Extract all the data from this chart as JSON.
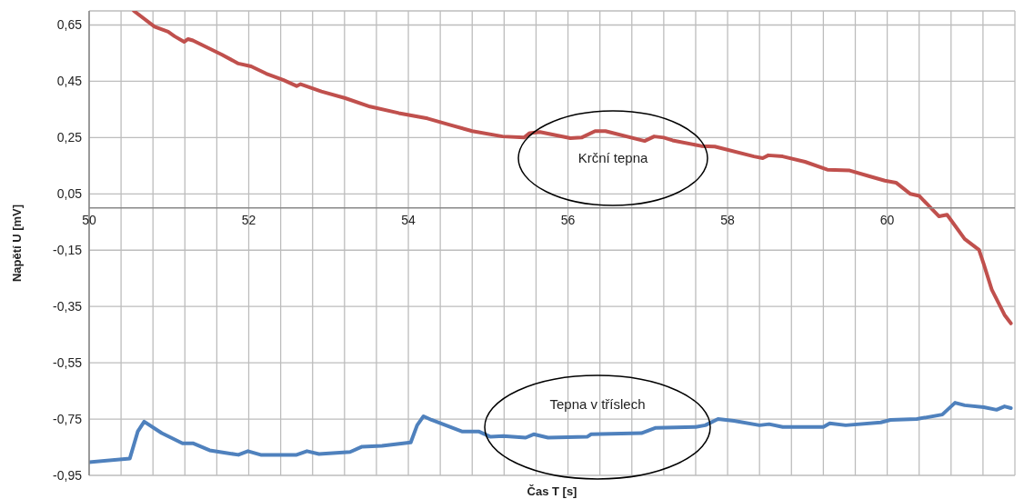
{
  "chart_data": {
    "type": "line",
    "xlabel": "Čas T [s]",
    "ylabel": "Napětí U [mV]",
    "xlim": [
      50,
      61.6
    ],
    "ylim": [
      -0.95,
      0.7
    ],
    "xticks": [
      50,
      {
        "value": 50.4,
        "label": null
      },
      {
        "value": 50.8,
        "label": null
      },
      {
        "value": 51.2,
        "label": null
      },
      {
        "value": 51.6,
        "label": null
      },
      52,
      {
        "value": 52.4,
        "label": null
      },
      {
        "value": 52.8,
        "label": null
      },
      {
        "value": 53.2,
        "label": null
      },
      {
        "value": 53.6,
        "label": null
      },
      54,
      {
        "value": 54.4,
        "label": null
      },
      {
        "value": 54.8,
        "label": null
      },
      {
        "value": 55.2,
        "label": null
      },
      {
        "value": 55.6,
        "label": null
      },
      56,
      {
        "value": 56.4,
        "label": null
      },
      {
        "value": 56.8,
        "label": null
      },
      {
        "value": 57.2,
        "label": null
      },
      {
        "value": 57.6,
        "label": null
      },
      58,
      {
        "value": 58.4,
        "label": null
      },
      {
        "value": 58.8,
        "label": null
      },
      {
        "value": 59.2,
        "label": null
      },
      {
        "value": 59.6,
        "label": null
      },
      60,
      {
        "value": 60.4,
        "label": null
      },
      {
        "value": 60.8,
        "label": null
      },
      {
        "value": 61.2,
        "label": null
      }
    ],
    "yticks": [
      {
        "value": 0.65,
        "label": "0,65"
      },
      {
        "value": 0.45,
        "label": "0,45"
      },
      {
        "value": 0.25,
        "label": "0,25"
      },
      {
        "value": 0.05,
        "label": "0,05"
      },
      {
        "value": -0.15,
        "label": "-0,15"
      },
      {
        "value": -0.35,
        "label": "-0,35"
      },
      {
        "value": -0.55,
        "label": "-0,55"
      },
      {
        "value": -0.75,
        "label": "-0,75"
      },
      {
        "value": -0.95,
        "label": "-0,95"
      }
    ],
    "grid": true,
    "marker": "none",
    "line_style": "solid",
    "series": [
      {
        "color": "#c0504d",
        "x": [
          50.56,
          50.82,
          50.99,
          51.07,
          51.19,
          51.24,
          51.3,
          51.66,
          51.87,
          52.03,
          52.22,
          52.43,
          52.6,
          52.65,
          52.91,
          53.21,
          53.52,
          53.88,
          54.24,
          54.52,
          54.8,
          55.18,
          55.45,
          55.52,
          55.65,
          56.03,
          56.17,
          56.34,
          56.47,
          56.96,
          57.08,
          57.2,
          57.31,
          57.67,
          57.84,
          58.33,
          58.44,
          58.51,
          58.69,
          58.97,
          59.25,
          59.53,
          59.77,
          59.97,
          60.11,
          60.29,
          60.4,
          60.65,
          60.75,
          60.97,
          61.15,
          61.21,
          61.31,
          61.47,
          61.55
        ],
        "values": [
          0.7,
          0.644,
          0.626,
          0.61,
          0.59,
          0.6,
          0.595,
          0.545,
          0.513,
          0.503,
          0.477,
          0.455,
          0.433,
          0.44,
          0.414,
          0.39,
          0.36,
          0.337,
          0.318,
          0.295,
          0.273,
          0.254,
          0.25,
          0.266,
          0.27,
          0.248,
          0.25,
          0.273,
          0.273,
          0.238,
          0.254,
          0.25,
          0.24,
          0.22,
          0.218,
          0.183,
          0.177,
          0.187,
          0.183,
          0.164,
          0.136,
          0.133,
          0.113,
          0.097,
          0.09,
          0.05,
          0.043,
          -0.03,
          -0.024,
          -0.11,
          -0.149,
          -0.2,
          -0.29,
          -0.38,
          -0.41
        ]
      },
      {
        "color": "#4f81bd",
        "x": [
          50,
          50.51,
          50.61,
          50.69,
          50.91,
          51.17,
          51.3,
          51.51,
          51.71,
          51.87,
          51.99,
          52.15,
          52.6,
          52.73,
          52.88,
          53.27,
          53.42,
          53.67,
          54.03,
          54.11,
          54.19,
          54.29,
          54.67,
          54.88,
          55.03,
          55.19,
          55.47,
          55.57,
          55.75,
          56.24,
          56.29,
          56.92,
          57.1,
          57.6,
          57.72,
          57.88,
          58.08,
          58.4,
          58.52,
          58.69,
          59.2,
          59.28,
          59.48,
          59.92,
          60.04,
          60.37,
          60.69,
          60.85,
          60.97,
          61.21,
          61.37,
          61.47,
          61.55
        ],
        "values": [
          -0.903,
          -0.89,
          -0.794,
          -0.759,
          -0.8,
          -0.836,
          -0.836,
          -0.861,
          -0.87,
          -0.877,
          -0.864,
          -0.877,
          -0.877,
          -0.864,
          -0.874,
          -0.867,
          -0.848,
          -0.845,
          -0.833,
          -0.772,
          -0.74,
          -0.753,
          -0.794,
          -0.794,
          -0.813,
          -0.81,
          -0.816,
          -0.804,
          -0.816,
          -0.813,
          -0.804,
          -0.8,
          -0.781,
          -0.778,
          -0.772,
          -0.75,
          -0.756,
          -0.772,
          -0.768,
          -0.778,
          -0.778,
          -0.765,
          -0.772,
          -0.762,
          -0.753,
          -0.75,
          -0.734,
          -0.692,
          -0.701,
          -0.708,
          -0.717,
          -0.705,
          -0.711
        ]
      }
    ],
    "annotations": [
      "Krční tepna",
      "Tepna v tříslech"
    ]
  }
}
